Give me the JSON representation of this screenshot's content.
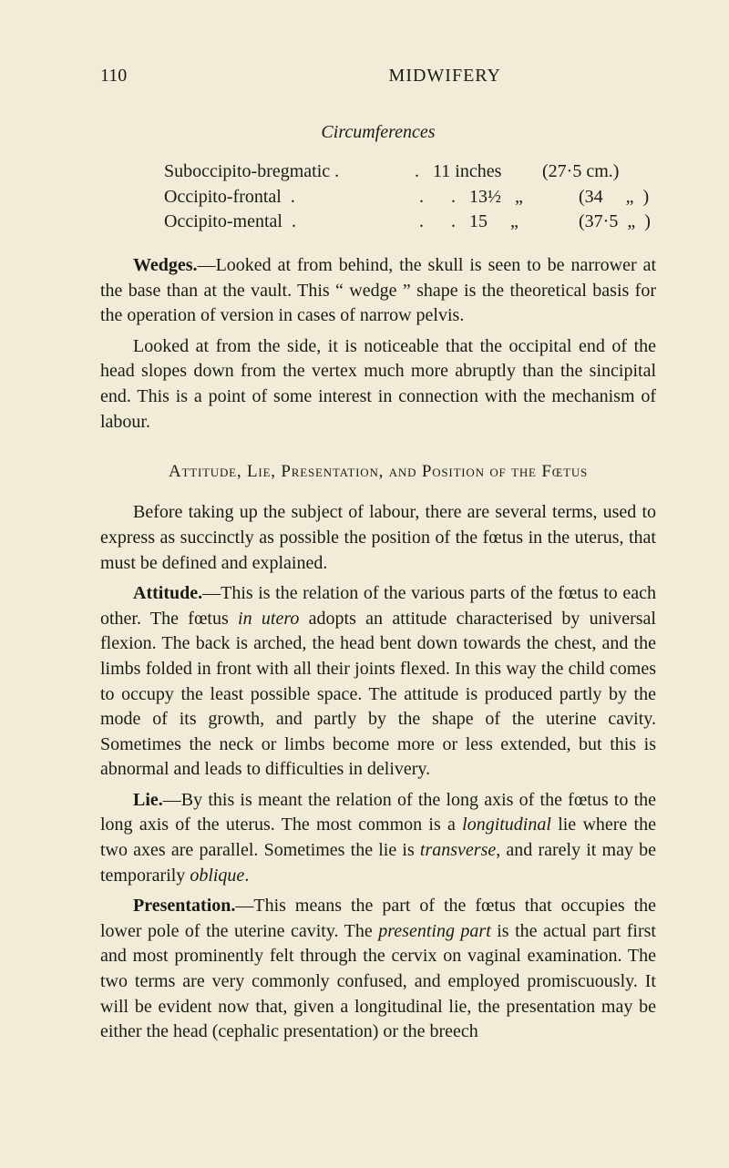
{
  "header": {
    "page_number": "110",
    "running_title": "MIDWIFERY"
  },
  "subhead": "Circumferences",
  "circumferences": [
    {
      "label": "Suboccipito-bregmatic .",
      "dots": "   .   ",
      "value": "11 inches",
      "paren": "(27·5 cm.)"
    },
    {
      "label": "Occipito-frontal  .",
      "dots": "    .      .   ",
      "value": "13½   „",
      "paren": "(34     „  )"
    },
    {
      "label": "Occipito-mental  .",
      "dots": "    .      .   ",
      "value": "15     „",
      "paren": "(37·5  „  )"
    }
  ],
  "paragraphs": {
    "wedges": {
      "lead": "Wedges.",
      "text": "—Looked at from behind, the skull is seen to be narrower at the base than at the vault. This “ wedge ” shape is the theoretical basis for the operation of version in cases of narrow pelvis."
    },
    "wedges2": "Looked at from the side, it is noticeable that the occipital end of the head slopes down from the vertex much more abruptly than the sincipital end. This is a point of some interest in connection with the mechanism of labour.",
    "sectiontitle_parts": {
      "a": "Attitude, Lie, Presentation, and Position of the Fœtus"
    },
    "before": "Before taking up the subject of labour, there are several terms, used to express as succinctly as possible the position of the fœtus in the uterus, that must be defined and explained.",
    "attitude": {
      "lead": "Attitude.",
      "text": "—This is the relation of the various parts of the fœtus to each other. The fœtus ",
      "ital1": "in utero",
      "text2": " adopts an attitude characterised by universal flexion. The back is arched, the head bent down towards the chest, and the limbs folded in front with all their joints flexed. In this way the child comes to occupy the least possible space. The attitude is produced partly by the mode of its growth, and partly by the shape of the uterine cavity. Sometimes the neck or limbs become more or less extended, but this is abnormal and leads to difficulties in delivery."
    },
    "lie": {
      "lead": "Lie.",
      "text": "—By this is meant the relation of the long axis of the fœtus to the long axis of the uterus. The most common is a ",
      "ital1": "longitudinal",
      "text2": " lie where the two axes are parallel. Sometimes the lie is ",
      "ital2": "transverse",
      "text3": ", and rarely it may be temporarily ",
      "ital3": "oblique",
      "text4": "."
    },
    "presentation": {
      "lead": "Presentation.",
      "text": "—This means the part of the fœtus that occupies the lower pole of the uterine cavity. The ",
      "ital1": "presenting part",
      "text2": " is the actual part first and most prominently felt through the cervix on vaginal examination. The two terms are very commonly confused, and employed promiscuously. It will be evident now that, given a longitudinal lie, the presentation may be either the head (cephalic presentation) or the breech"
    }
  }
}
